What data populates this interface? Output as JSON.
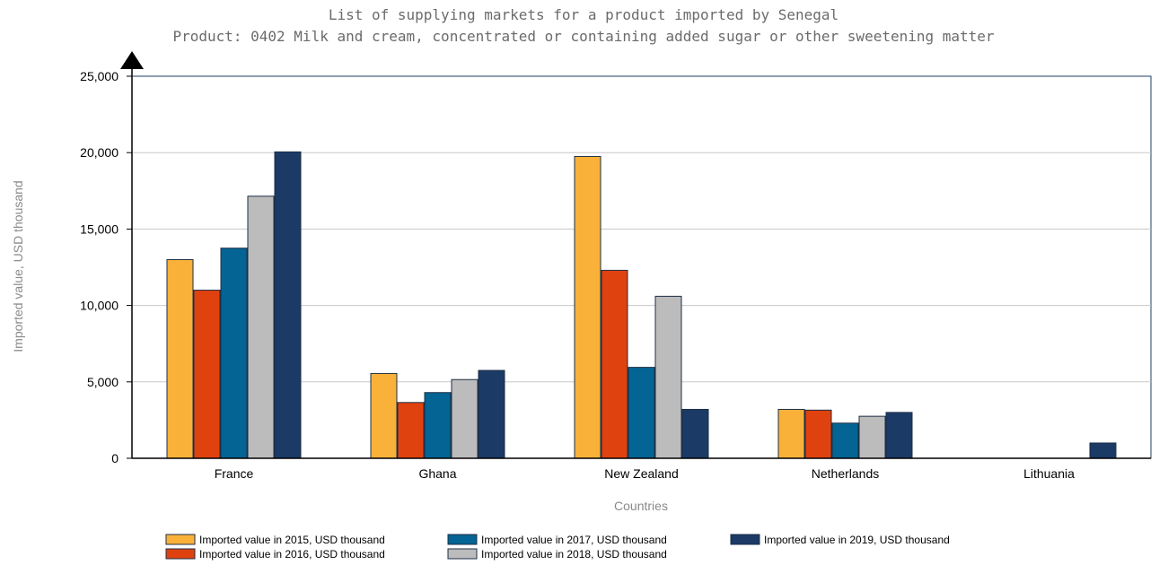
{
  "chart_data": {
    "type": "bar",
    "title": "List of supplying markets for a product imported by Senegal",
    "subtitle": "Product: 0402 Milk and cream, concentrated or containing added sugar or other sweetening matter",
    "xlabel": "Countries",
    "ylabel": "Imported value, USD thousand",
    "ylim": [
      0,
      25000
    ],
    "yticks": [
      0,
      5000,
      10000,
      15000,
      20000,
      25000
    ],
    "ytick_labels": [
      "0",
      "5,000",
      "10,000",
      "15,000",
      "20,000",
      "25,000"
    ],
    "categories": [
      "France",
      "Ghana",
      "New Zealand",
      "Netherlands",
      "Lithuania"
    ],
    "grid": "horizontal",
    "legend_position": "bottom",
    "series": [
      {
        "name": "Imported value in 2015, USD thousand",
        "color": "#f9b13a",
        "values": [
          13000,
          5550,
          19750,
          3200,
          0
        ]
      },
      {
        "name": "Imported value in 2016, USD thousand",
        "color": "#e0420f",
        "values": [
          11000,
          3650,
          12300,
          3150,
          0
        ]
      },
      {
        "name": "Imported value in 2017, USD thousand",
        "color": "#046493",
        "values": [
          13750,
          4300,
          5950,
          2300,
          0
        ]
      },
      {
        "name": "Imported value in 2018, USD thousand",
        "color": "#bcbcbc",
        "values": [
          17150,
          5150,
          10600,
          2750,
          0
        ]
      },
      {
        "name": "Imported value in 2019, USD thousand",
        "color": "#1b3a66",
        "values": [
          20050,
          5750,
          3200,
          3000,
          1000
        ]
      }
    ]
  }
}
